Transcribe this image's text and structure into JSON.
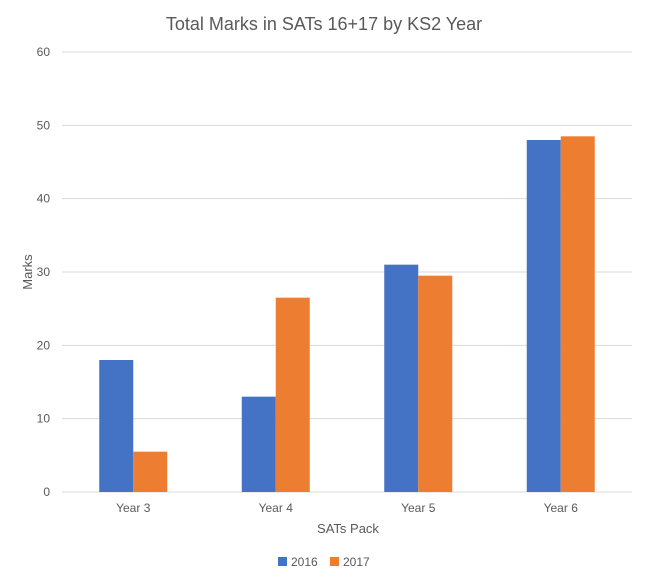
{
  "chart_data": {
    "type": "bar",
    "title": "Total Marks in SATs 16+17 by KS2 Year",
    "xlabel": "SATs Pack",
    "ylabel": "Marks",
    "categories": [
      "Year 3",
      "Year 4",
      "Year 5",
      "Year 6"
    ],
    "series": [
      {
        "name": "2016",
        "values": [
          18,
          13,
          31,
          48
        ],
        "color": "#4472C4"
      },
      {
        "name": "2017",
        "values": [
          5.5,
          26.5,
          29.5,
          48.5
        ],
        "color": "#ED7D31"
      }
    ],
    "ylim": [
      0,
      60
    ],
    "yticks": [
      "0",
      "10",
      "20",
      "30",
      "40",
      "50",
      "60"
    ],
    "grid": true,
    "legend": "bottom",
    "gridColor": "#D9D9D9",
    "textColor": "#595959"
  }
}
